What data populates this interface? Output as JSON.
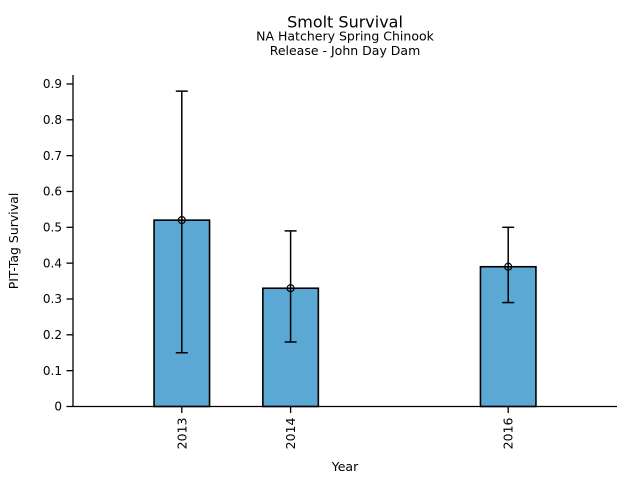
{
  "chart_data": {
    "type": "bar",
    "title": "Smolt Survival",
    "subtitle": [
      "NA Hatchery Spring Chinook",
      "Release - John Day Dam"
    ],
    "xlabel": "Year",
    "ylabel": "PIT-Tag Survival",
    "categories": [
      "2013",
      "2014",
      "2016"
    ],
    "x_values": [
      2013,
      2014,
      2016
    ],
    "values": [
      0.52,
      0.33,
      0.39
    ],
    "error_low": [
      0.15,
      0.18,
      0.29
    ],
    "error_high": [
      0.88,
      0.49,
      0.5
    ],
    "yticks": [
      0,
      0.1,
      0.2,
      0.3,
      0.4,
      0.5,
      0.6,
      0.7,
      0.8,
      0.9
    ],
    "ytick_labels": [
      "0",
      "0.1",
      "0.2",
      "0.3",
      "0.4",
      "0.5",
      "0.6",
      "0.7",
      "0.8",
      "0.9"
    ],
    "xlim": [
      2012,
      2017
    ],
    "ylim": [
      0,
      0.925
    ],
    "bar_width_years": 0.51,
    "grid": false,
    "legend": null,
    "marker": "open-circle",
    "bar_color": "#5BA8D4",
    "bar_edge_color": "#000000",
    "error_color": "#000000",
    "axis_color": "#000000",
    "background": "#FFFFFF"
  }
}
